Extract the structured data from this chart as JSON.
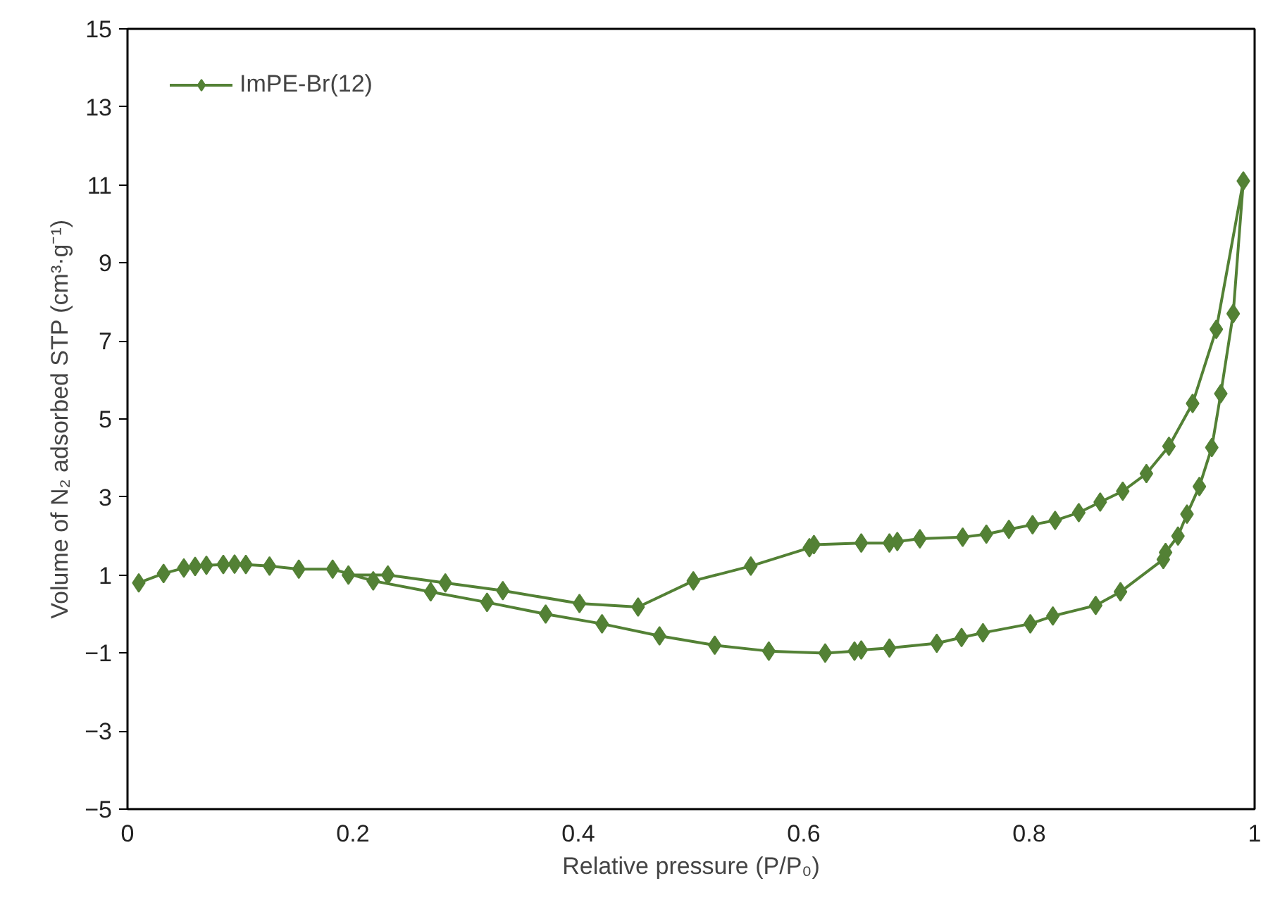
{
  "chart_data": {
    "type": "line",
    "xlabel": "Relative pressure (P/P₀)",
    "ylabel": "Volume of N₂ adsorbed STP (cm³·g⁻¹)",
    "xlim": [
      0,
      1
    ],
    "ylim": [
      -5,
      15
    ],
    "xticks": [
      0,
      0.2,
      0.4,
      0.6,
      0.8,
      1
    ],
    "yticks": [
      -5,
      -3,
      -1,
      1,
      3,
      5,
      7,
      9,
      11,
      13,
      15
    ],
    "grid": false,
    "legend": "top left",
    "marker": "diamond",
    "line_style": "solid",
    "series": [
      {
        "name": "ImPE-Br(12)",
        "color": "#538135",
        "x": [
          0.01,
          0.032,
          0.05,
          0.06,
          0.07,
          0.085,
          0.095,
          0.105,
          0.126,
          0.152,
          0.182,
          0.218,
          0.269,
          0.319,
          0.371,
          0.421,
          0.472,
          0.521,
          0.569,
          0.619,
          0.645,
          0.651,
          0.676,
          0.718,
          0.74,
          0.759,
          0.801,
          0.821,
          0.859,
          0.881,
          0.919,
          0.921,
          0.932,
          0.94,
          0.951,
          0.962,
          0.97,
          0.981,
          0.99,
          0.966,
          0.945,
          0.924,
          0.904,
          0.883,
          0.863,
          0.844,
          0.823,
          0.803,
          0.782,
          0.762,
          0.741,
          0.703,
          0.683,
          0.676,
          0.651,
          0.609,
          0.605,
          0.553,
          0.502,
          0.453,
          0.401,
          0.333,
          0.282,
          0.231,
          0.196
        ],
        "values": [
          0.8,
          1.04,
          1.18,
          1.22,
          1.25,
          1.27,
          1.28,
          1.27,
          1.23,
          1.15,
          1.15,
          0.85,
          0.57,
          0.3,
          0.0,
          -0.25,
          -0.56,
          -0.8,
          -0.95,
          -1.0,
          -0.95,
          -0.92,
          -0.87,
          -0.75,
          -0.6,
          -0.48,
          -0.25,
          -0.05,
          0.22,
          0.57,
          1.4,
          1.58,
          2.0,
          2.56,
          3.27,
          4.27,
          5.65,
          7.7,
          11.1,
          7.3,
          5.4,
          4.3,
          3.6,
          3.15,
          2.87,
          2.6,
          2.4,
          2.29,
          2.17,
          2.05,
          1.97,
          1.93,
          1.86,
          1.82,
          1.82,
          1.78,
          1.7,
          1.23,
          0.85,
          0.18,
          0.27,
          0.6,
          0.8,
          1.0,
          1.0
        ]
      }
    ]
  }
}
